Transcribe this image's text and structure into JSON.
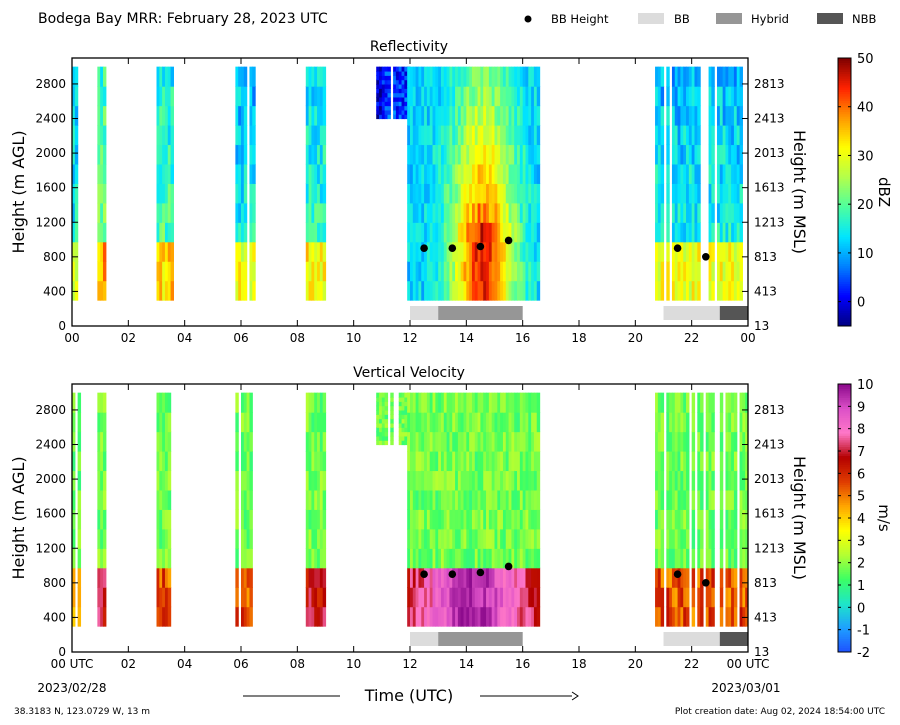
{
  "header": {
    "title": "Bodega Bay MRR:  February 28, 2023 UTC",
    "legend": [
      {
        "label": "BB Height",
        "marker": "dot",
        "color": "#000000"
      },
      {
        "label": "BB",
        "marker": "box",
        "color": "#dcdcdc"
      },
      {
        "label": "Hybrid",
        "marker": "box",
        "color": "#969696"
      },
      {
        "label": "NBB",
        "marker": "box",
        "color": "#555555"
      }
    ]
  },
  "footer": {
    "location": "38.3183 N, 123.0729 W, 13 m",
    "created": "Plot creation date: Aug 02, 2024 18:54:00 UTC",
    "xlabel": "Time (UTC)",
    "start_date": "2023/02/28",
    "end_date": "2023/03/01"
  },
  "chart_data": [
    {
      "type": "heatmap",
      "title": "Reflectivity",
      "ylabel": "Height (m AGL)",
      "ylabel_right": "Height (m MSL)",
      "xlim_hours": [
        0,
        24
      ],
      "ylim_m": [
        0,
        3100
      ],
      "x_ticks": [
        "00",
        "02",
        "04",
        "06",
        "08",
        "10",
        "12",
        "14",
        "16",
        "18",
        "20",
        "22",
        "00"
      ],
      "y_ticks": [
        0,
        400,
        800,
        1200,
        1600,
        2000,
        2400,
        2800
      ],
      "y_ticks_right": [
        13,
        413,
        813,
        1213,
        1613,
        2013,
        2413,
        2813
      ],
      "colorbar": {
        "label": "dBZ",
        "range": [
          -5,
          50
        ],
        "ticks": [
          0,
          10,
          20,
          30,
          40,
          50
        ],
        "colormap": [
          "#00007f",
          "#0000ff",
          "#0080ff",
          "#00e5ff",
          "#4cff9f",
          "#b2ff4c",
          "#ffff00",
          "#ff9900",
          "#ff2200",
          "#7f0000"
        ]
      },
      "bb_heights": [
        {
          "t": 12.5,
          "h": 900
        },
        {
          "t": 13.5,
          "h": 900
        },
        {
          "t": 14.5,
          "h": 920
        },
        {
          "t": 15.5,
          "h": 990
        },
        {
          "t": 21.5,
          "h": 900
        },
        {
          "t": 22.5,
          "h": 800
        }
      ],
      "bb_type_bar": [
        {
          "start": 12.0,
          "end": 13.0,
          "type": "BB"
        },
        {
          "start": 13.0,
          "end": 16.0,
          "type": "Hybrid"
        },
        {
          "start": 21.0,
          "end": 23.0,
          "type": "BB"
        },
        {
          "start": 23.0,
          "end": 24.0,
          "type": "NBB"
        }
      ]
    },
    {
      "type": "heatmap",
      "title": "Vertical Velocity",
      "ylabel": "Height (m AGL)",
      "ylabel_right": "Height (m MSL)",
      "xlim_hours": [
        0,
        24
      ],
      "ylim_m": [
        0,
        3100
      ],
      "x_ticks": [
        "00 UTC",
        "02",
        "04",
        "06",
        "08",
        "10",
        "12",
        "14",
        "16",
        "18",
        "20",
        "22",
        "00 UTC"
      ],
      "y_ticks": [
        0,
        400,
        800,
        1200,
        1600,
        2000,
        2400,
        2800
      ],
      "y_ticks_right": [
        13,
        413,
        813,
        1213,
        1613,
        2013,
        2413,
        2813
      ],
      "colorbar": {
        "label": "m/s",
        "range": [
          -2,
          10
        ],
        "ticks": [
          -2,
          -1,
          0,
          1,
          2,
          3,
          4,
          5,
          6,
          7,
          8,
          9,
          10
        ],
        "colormap": [
          "#1e50ff",
          "#1ea0ff",
          "#1ee6c8",
          "#3cff64",
          "#b4ff32",
          "#ffff00",
          "#ffa500",
          "#e03c00",
          "#b40000",
          "#ff78c8",
          "#dc50c8",
          "#8c0a8c"
        ]
      },
      "bb_heights": [
        {
          "t": 12.5,
          "h": 900
        },
        {
          "t": 13.5,
          "h": 900
        },
        {
          "t": 14.5,
          "h": 920
        },
        {
          "t": 15.5,
          "h": 990
        },
        {
          "t": 21.5,
          "h": 900
        },
        {
          "t": 22.5,
          "h": 800
        }
      ],
      "bb_type_bar": [
        {
          "start": 12.0,
          "end": 13.0,
          "type": "BB"
        },
        {
          "start": 13.0,
          "end": 16.0,
          "type": "Hybrid"
        },
        {
          "start": 21.0,
          "end": 23.0,
          "type": "BB"
        },
        {
          "start": 23.0,
          "end": 24.0,
          "type": "NBB"
        }
      ]
    }
  ]
}
